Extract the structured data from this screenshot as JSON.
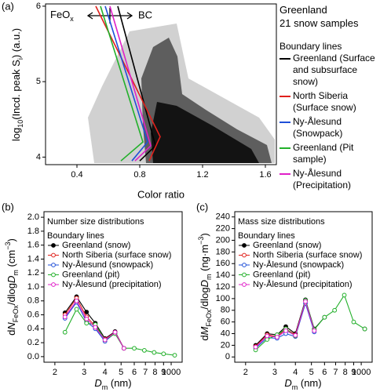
{
  "chart_data": [
    {
      "type": "line",
      "panel": "(a)",
      "xlabel": "Color ratio",
      "ylabel": [
        "log",
        "10",
        "(Incd. peak S",
        "i",
        ") (a.u.)"
      ],
      "arrow_left": [
        "FeO",
        "x"
      ],
      "arrow_right": "BC",
      "annotations": [
        "Greenland",
        "21 snow samples"
      ],
      "legend_title": "Boundary lines",
      "xlim": [
        0.2,
        1.67
      ],
      "ylim": [
        3.9,
        6.03
      ],
      "xticks": [
        0.4,
        0.8,
        1.2,
        1.6
      ],
      "yticks": [
        4,
        5,
        6
      ],
      "series": [
        {
          "name": "Greenland (Surface and subsurface snow)",
          "color": "#000000",
          "x": [
            0.66,
            0.9,
            0.8
          ],
          "values": [
            6.0,
            4.15,
            3.95
          ]
        },
        {
          "name": "North Siberia (Surface snow)",
          "color": "#e0201b",
          "x": [
            0.52,
            0.93,
            0.86
          ],
          "values": [
            6.0,
            4.27,
            3.95
          ]
        },
        {
          "name": "Ny-Ålesund (Snowpack)",
          "color": "#1f4fd8",
          "x": [
            0.58,
            0.85,
            0.75
          ],
          "values": [
            6.0,
            4.2,
            3.95
          ]
        },
        {
          "name": "Greenland (Pit sample)",
          "color": "#22b02a",
          "x": [
            0.55,
            0.82,
            0.68
          ],
          "values": [
            6.0,
            4.2,
            3.95
          ]
        },
        {
          "name": "Ny-Ålesund (Precipitation)",
          "color": "#e020c8",
          "x": [
            0.61,
            0.87,
            0.77
          ],
          "values": [
            6.0,
            4.15,
            3.95
          ]
        }
      ]
    },
    {
      "type": "line",
      "panel": "(b)",
      "title": "Number size distributions",
      "legend_title": "Boundary lines",
      "xlabel": [
        "D",
        "m",
        " (nm)"
      ],
      "ylabel": [
        "d",
        "N",
        "FeOx",
        "/dlog",
        "D",
        "m",
        " (cm",
        "−3",
        ")"
      ],
      "xscale": "log",
      "xlim": [
        172,
        1164
      ],
      "ylim": [
        -0.08,
        2.08
      ],
      "xticks": [
        {
          "value": 200,
          "label": "2"
        },
        {
          "value": 300,
          "label": "3"
        },
        {
          "value": 400,
          "label": "4"
        },
        {
          "value": 500,
          "label": "5"
        },
        {
          "value": 600,
          "label": "6"
        },
        {
          "value": 700,
          "label": "7"
        },
        {
          "value": 800,
          "label": "8"
        },
        {
          "value": 900,
          "label": "9"
        },
        1000
      ],
      "yticks": [
        {
          "value": 0,
          "label": "0.0"
        },
        0.2,
        0.4,
        0.6,
        0.8,
        {
          "value": 1,
          "label": "1.0"
        },
        1.2,
        1.4,
        1.6,
        1.8,
        {
          "value": 2,
          "label": "2.0"
        }
      ],
      "x": [
        230,
        270,
        310,
        350,
        400,
        460,
        520,
        600,
        690,
        790,
        900,
        1050
      ],
      "series": [
        {
          "name": "Greenland (snow)",
          "color": "#000000",
          "filled": true,
          "values": [
            0.63,
            0.86,
            0.64,
            0.48,
            0.26,
            0.36,
            0.12,
            null,
            null,
            null,
            null,
            null
          ]
        },
        {
          "name": "North Siberia (surface snow)",
          "color": "#e0201b",
          "values": [
            0.6,
            0.84,
            0.57,
            0.44,
            0.25,
            0.35,
            0.12,
            null,
            null,
            null,
            null,
            null
          ]
        },
        {
          "name": "Ny-Ålesund (snowpack)",
          "color": "#1f4fd8",
          "values": [
            0.55,
            0.78,
            0.5,
            0.4,
            0.22,
            0.34,
            0.12,
            null,
            null,
            null,
            null,
            null
          ]
        },
        {
          "name": "Greenland (pit)",
          "color": "#22b02a",
          "values": [
            0.35,
            0.68,
            0.48,
            0.46,
            0.24,
            0.33,
            0.12,
            0.12,
            0.09,
            0.06,
            0.04,
            0.02
          ]
        },
        {
          "name": "Ny-Ålesund (precipitation)",
          "color": "#e020c8",
          "values": [
            0.57,
            0.8,
            0.54,
            0.42,
            0.24,
            0.35,
            0.12,
            null,
            null,
            null,
            null,
            null
          ]
        }
      ]
    },
    {
      "type": "line",
      "panel": "(c)",
      "title": "Mass size distributions",
      "legend_title": "Boundary lines",
      "xlabel": [
        "D",
        "m",
        " (nm)"
      ],
      "ylabel": [
        "d",
        "M",
        "FeOx",
        "/dlog",
        "D",
        "m",
        " (ng·m",
        "−3",
        ")"
      ],
      "xscale": "log",
      "xlim": [
        172,
        1164
      ],
      "ylim": [
        -9,
        249
      ],
      "xticks": [
        {
          "value": 200,
          "label": "2"
        },
        {
          "value": 300,
          "label": "3"
        },
        {
          "value": 400,
          "label": "4"
        },
        {
          "value": 500,
          "label": "5"
        },
        {
          "value": 600,
          "label": "6"
        },
        {
          "value": 700,
          "label": "7"
        },
        {
          "value": 800,
          "label": "8"
        },
        {
          "value": 900,
          "label": "9"
        },
        1000
      ],
      "yticks": [
        0,
        20,
        40,
        60,
        80,
        100,
        120,
        140,
        160,
        180,
        200,
        220,
        240
      ],
      "x": [
        230,
        270,
        310,
        350,
        400,
        460,
        520,
        600,
        690,
        790,
        900,
        1050
      ],
      "series": [
        {
          "name": "Greenland (snow)",
          "color": "#000000",
          "filled": true,
          "values": [
            20,
            40,
            38,
            52,
            40,
            98,
            48,
            68,
            null,
            null,
            null,
            48
          ]
        },
        {
          "name": "North Siberia (surface snow)",
          "color": "#e0201b",
          "values": [
            18,
            38,
            35,
            48,
            38,
            96,
            46,
            null,
            null,
            null,
            null,
            null
          ]
        },
        {
          "name": "Ny-Ålesund (snowpack)",
          "color": "#1f4fd8",
          "values": [
            15,
            33,
            32,
            40,
            35,
            92,
            43,
            null,
            null,
            null,
            null,
            null
          ]
        },
        {
          "name": "Greenland (pit)",
          "color": "#22b02a",
          "values": [
            12,
            30,
            38,
            48,
            36,
            97,
            47,
            68,
            80,
            106,
            60,
            48
          ]
        },
        {
          "name": "Ny-Ålesund (precipitation)",
          "color": "#e020c8",
          "values": [
            17,
            36,
            34,
            45,
            37,
            95,
            45,
            null,
            null,
            null,
            null,
            null
          ]
        }
      ]
    }
  ]
}
